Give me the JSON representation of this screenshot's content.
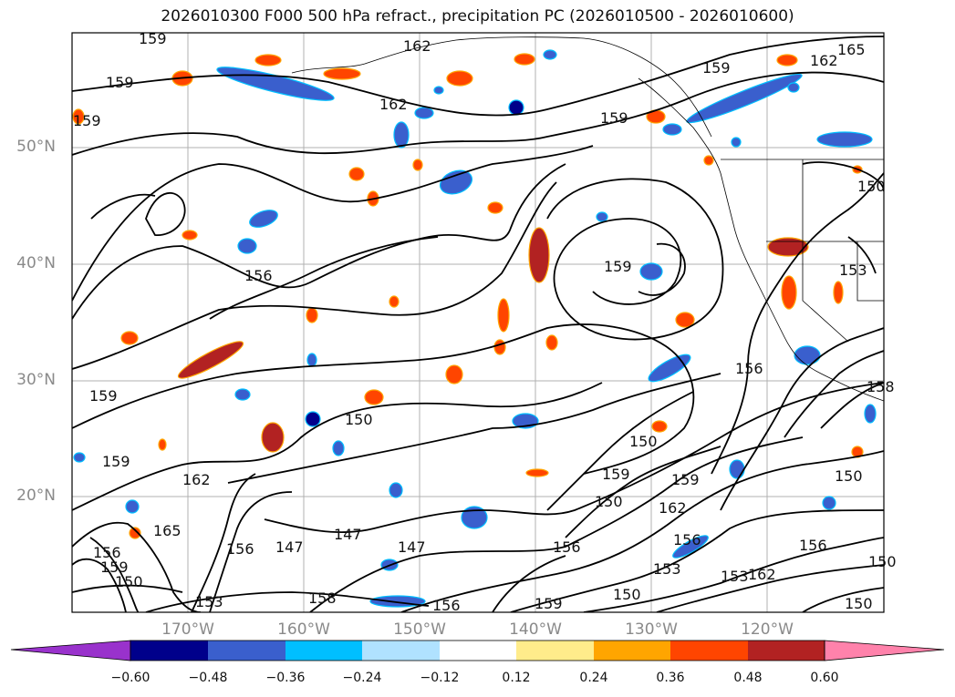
{
  "title": "2026010300 F000 500 hPa refract., precipitation PC (2026010500 - 2026010600)",
  "latitude_labels": [
    "50°N",
    "40°N",
    "30°N",
    "20°N"
  ],
  "longitude_labels": [
    "170°W",
    "160°W",
    "150°W",
    "140°W",
    "130°W",
    "120°W"
  ],
  "contour_labels": [
    "159",
    "162",
    "165",
    "162",
    "159",
    "159",
    "162",
    "159",
    "159",
    "156",
    "159",
    "150",
    "156",
    "153",
    "159",
    "158",
    "150",
    "150",
    "150",
    "159",
    "162",
    "165",
    "156",
    "147",
    "147",
    "147",
    "153",
    "158",
    "156",
    "159",
    "159",
    "150",
    "162",
    "156",
    "156",
    "153",
    "156",
    "153",
    "162",
    "150",
    "150",
    "156",
    "159",
    "150",
    "159",
    "150"
  ],
  "colorbar": {
    "tick_labels": [
      "−0.60",
      "−0.48",
      "−0.36",
      "−0.24",
      "−0.12",
      "0.12",
      "0.24",
      "0.36",
      "0.48",
      "0.60"
    ],
    "colors": [
      "#9932cc",
      "#00008b",
      "#3a5fcd",
      "#00bfff",
      "#b0e2ff",
      "#ffffff",
      "#ffec8b",
      "#ffa500",
      "#ff4500",
      "#b22222",
      "#ff82ab"
    ]
  },
  "colors": {
    "contour": "#000000",
    "grid": "#b0b0b0",
    "coast": "#000000"
  }
}
